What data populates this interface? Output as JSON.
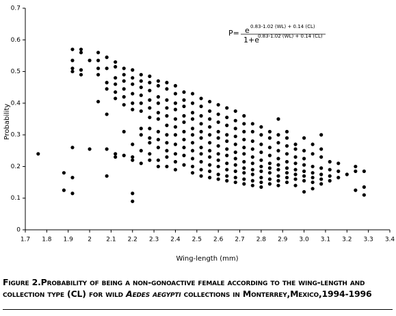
{
  "chart_data": {
    "type": "scatter",
    "color": "#000000",
    "x_label": "Wing-length (mm)",
    "y_label": "Probability",
    "formula": {
      "lhs": "P=",
      "num_base": "e",
      "num_exp": "0.83-1.02 (WL) + 0.14 (CL)",
      "den_base": "1+e",
      "den_exp": "0.83-1.02 (WL) + 0.14 (CL)"
    },
    "caption": [
      "Figure 2.Probability of being a non-gonoactive female according to the wing-length and collection type (CL) for wild ",
      "Aedes aegypti",
      " collections in Monterrey,Mexico,1994-1996"
    ],
    "xlim": [
      1.7,
      3.4
    ],
    "ylim": [
      0,
      0.7
    ],
    "xticks": [
      1.7,
      1.8,
      1.9,
      2,
      2.1,
      2.2,
      2.3,
      2.4,
      2.5,
      2.6,
      2.7,
      2.8,
      2.9,
      {
        "value": 3,
        "label": "3.0"
      },
      3.1,
      3.2,
      3.3,
      3.4
    ],
    "yticks": [
      0,
      0.1,
      0.2,
      0.3,
      0.4,
      0.5,
      0.6,
      0.7
    ],
    "x": [
      1.76,
      1.88,
      1.88,
      1.92,
      1.92,
      1.92,
      1.92,
      1.92,
      1.92,
      1.92,
      1.96,
      1.96,
      1.96,
      1.96,
      2.0,
      2.0,
      2.04,
      2.04,
      2.04,
      2.04,
      2.04,
      2.08,
      2.08,
      2.08,
      2.08,
      2.08,
      2.08,
      2.08,
      2.12,
      2.12,
      2.12,
      2.12,
      2.12,
      2.12,
      2.12,
      2.12,
      2.16,
      2.16,
      2.16,
      2.16,
      2.16,
      2.16,
      2.16,
      2.16,
      2.2,
      2.2,
      2.2,
      2.2,
      2.2,
      2.2,
      2.2,
      2.2,
      2.2,
      2.2,
      2.2,
      2.24,
      2.24,
      2.24,
      2.24,
      2.24,
      2.24,
      2.24,
      2.24,
      2.24,
      2.24,
      2.28,
      2.28,
      2.28,
      2.28,
      2.28,
      2.28,
      2.28,
      2.28,
      2.28,
      2.28,
      2.28,
      2.32,
      2.32,
      2.32,
      2.32,
      2.32,
      2.32,
      2.32,
      2.32,
      2.32,
      2.32,
      2.32,
      2.36,
      2.36,
      2.36,
      2.36,
      2.36,
      2.36,
      2.36,
      2.36,
      2.36,
      2.36,
      2.36,
      2.4,
      2.4,
      2.4,
      2.4,
      2.4,
      2.4,
      2.4,
      2.4,
      2.4,
      2.4,
      2.4,
      2.44,
      2.44,
      2.44,
      2.44,
      2.44,
      2.44,
      2.44,
      2.44,
      2.44,
      2.44,
      2.48,
      2.48,
      2.48,
      2.48,
      2.48,
      2.48,
      2.48,
      2.48,
      2.48,
      2.48,
      2.48,
      2.52,
      2.52,
      2.52,
      2.52,
      2.52,
      2.52,
      2.52,
      2.52,
      2.52,
      2.52,
      2.52,
      2.56,
      2.56,
      2.56,
      2.56,
      2.56,
      2.56,
      2.56,
      2.56,
      2.56,
      2.56,
      2.56,
      2.6,
      2.6,
      2.6,
      2.6,
      2.6,
      2.6,
      2.6,
      2.6,
      2.6,
      2.6,
      2.6,
      2.64,
      2.64,
      2.64,
      2.64,
      2.64,
      2.64,
      2.64,
      2.64,
      2.64,
      2.64,
      2.64,
      2.68,
      2.68,
      2.68,
      2.68,
      2.68,
      2.68,
      2.68,
      2.68,
      2.68,
      2.68,
      2.68,
      2.72,
      2.72,
      2.72,
      2.72,
      2.72,
      2.72,
      2.72,
      2.72,
      2.72,
      2.72,
      2.72,
      2.76,
      2.76,
      2.76,
      2.76,
      2.76,
      2.76,
      2.76,
      2.76,
      2.76,
      2.76,
      2.8,
      2.8,
      2.8,
      2.8,
      2.8,
      2.8,
      2.8,
      2.8,
      2.8,
      2.8,
      2.84,
      2.84,
      2.84,
      2.84,
      2.84,
      2.84,
      2.84,
      2.84,
      2.84,
      2.88,
      2.88,
      2.88,
      2.88,
      2.88,
      2.88,
      2.88,
      2.88,
      2.88,
      2.88,
      2.92,
      2.92,
      2.92,
      2.92,
      2.92,
      2.92,
      2.92,
      2.92,
      2.92,
      2.96,
      2.96,
      2.96,
      2.96,
      2.96,
      2.96,
      2.96,
      2.96,
      3.0,
      3.0,
      3.0,
      3.0,
      3.0,
      3.0,
      3.0,
      3.0,
      3.04,
      3.04,
      3.04,
      3.04,
      3.04,
      3.04,
      3.04,
      3.08,
      3.08,
      3.08,
      3.08,
      3.08,
      3.08,
      3.08,
      3.12,
      3.12,
      3.12,
      3.12,
      3.16,
      3.16,
      3.16,
      3.2,
      3.24,
      3.24,
      3.24,
      3.28,
      3.28,
      3.28
    ],
    "values": [
      0.24,
      0.18,
      0.125,
      0.57,
      0.535,
      0.51,
      0.5,
      0.26,
      0.165,
      0.115,
      0.57,
      0.56,
      0.505,
      0.49,
      0.535,
      0.255,
      0.56,
      0.535,
      0.51,
      0.49,
      0.405,
      0.545,
      0.51,
      0.465,
      0.445,
      0.365,
      0.255,
      0.17,
      0.53,
      0.515,
      0.48,
      0.46,
      0.435,
      0.415,
      0.24,
      0.23,
      0.51,
      0.49,
      0.47,
      0.445,
      0.42,
      0.395,
      0.31,
      0.235,
      0.505,
      0.48,
      0.46,
      0.43,
      0.4,
      0.38,
      0.27,
      0.23,
      0.22,
      0.115,
      0.09,
      0.49,
      0.47,
      0.45,
      0.425,
      0.4,
      0.375,
      0.32,
      0.3,
      0.25,
      0.21,
      0.485,
      0.465,
      0.44,
      0.41,
      0.385,
      0.355,
      0.32,
      0.29,
      0.275,
      0.24,
      0.22,
      0.47,
      0.455,
      0.42,
      0.4,
      0.37,
      0.35,
      0.31,
      0.285,
      0.26,
      0.22,
      0.2,
      0.465,
      0.445,
      0.41,
      0.385,
      0.36,
      0.33,
      0.3,
      0.275,
      0.25,
      0.23,
      0.2,
      0.455,
      0.43,
      0.4,
      0.38,
      0.35,
      0.325,
      0.3,
      0.27,
      0.24,
      0.215,
      0.19,
      0.435,
      0.41,
      0.39,
      0.36,
      0.34,
      0.31,
      0.285,
      0.26,
      0.235,
      0.205,
      0.43,
      0.4,
      0.37,
      0.35,
      0.32,
      0.3,
      0.275,
      0.25,
      0.225,
      0.2,
      0.18,
      0.415,
      0.39,
      0.36,
      0.335,
      0.31,
      0.29,
      0.26,
      0.24,
      0.215,
      0.19,
      0.17,
      0.405,
      0.375,
      0.35,
      0.325,
      0.3,
      0.275,
      0.25,
      0.23,
      0.205,
      0.185,
      0.165,
      0.395,
      0.365,
      0.34,
      0.31,
      0.29,
      0.265,
      0.24,
      0.22,
      0.2,
      0.175,
      0.16,
      0.385,
      0.355,
      0.33,
      0.3,
      0.28,
      0.255,
      0.235,
      0.21,
      0.19,
      0.17,
      0.155,
      0.375,
      0.345,
      0.32,
      0.295,
      0.27,
      0.245,
      0.225,
      0.205,
      0.185,
      0.165,
      0.15,
      0.36,
      0.335,
      0.31,
      0.285,
      0.26,
      0.24,
      0.215,
      0.195,
      0.18,
      0.16,
      0.145,
      0.335,
      0.31,
      0.28,
      0.255,
      0.23,
      0.21,
      0.19,
      0.175,
      0.155,
      0.14,
      0.325,
      0.3,
      0.27,
      0.245,
      0.22,
      0.2,
      0.185,
      0.165,
      0.15,
      0.135,
      0.31,
      0.29,
      0.26,
      0.235,
      0.21,
      0.195,
      0.18,
      0.16,
      0.145,
      0.35,
      0.3,
      0.275,
      0.25,
      0.225,
      0.205,
      0.19,
      0.17,
      0.155,
      0.14,
      0.31,
      0.29,
      0.265,
      0.24,
      0.215,
      0.195,
      0.18,
      0.165,
      0.15,
      0.27,
      0.255,
      0.23,
      0.21,
      0.19,
      0.175,
      0.16,
      0.14,
      0.29,
      0.25,
      0.225,
      0.205,
      0.185,
      0.17,
      0.155,
      0.12,
      0.27,
      0.24,
      0.2,
      0.18,
      0.165,
      0.15,
      0.13,
      0.3,
      0.255,
      0.23,
      0.195,
      0.175,
      0.16,
      0.145,
      0.215,
      0.19,
      0.17,
      0.155,
      0.21,
      0.185,
      0.165,
      0.175,
      0.2,
      0.185,
      0.125,
      0.185,
      0.135,
      0.11
    ]
  }
}
